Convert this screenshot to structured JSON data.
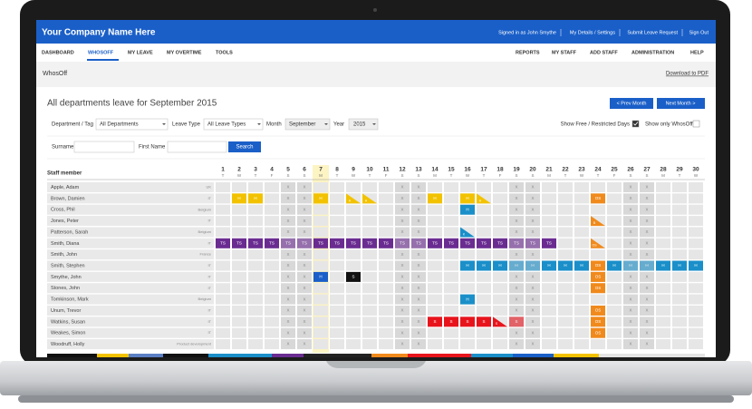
{
  "header": {
    "company": "Your Company Name Here",
    "links": [
      "Signed in as John Smythe",
      "My Details / Settings",
      "Submit Leave Request",
      "Sign Out"
    ]
  },
  "nav": {
    "left": [
      "DASHBOARD",
      "WHOSOFF",
      "MY LEAVE",
      "MY OVERTIME",
      "TOOLS"
    ],
    "right": [
      "REPORTS",
      "MY STAFF",
      "ADD STAFF",
      "ADMINISTRATION",
      "HELP"
    ],
    "active": "WHOSOFF"
  },
  "page": {
    "name": "WhosOff",
    "download": "Download to PDF",
    "title": "All departments leave for September 2015",
    "prev": "< Prev Month",
    "next": "Next Month >"
  },
  "filters": {
    "department_label": "Department / Tag",
    "department": "All Departments",
    "leave_type_label": "Leave Type",
    "leave_type": "All Leave Types",
    "month_label": "Month",
    "month": "September",
    "year_label": "Year",
    "year": "2015",
    "free_days_label": "Show Free / Restricted Days",
    "free_days_checked": true,
    "only_whosoff_label": "Show only WhosOff",
    "only_whosoff_checked": false,
    "surname_label": "Surname",
    "first_name_label": "First Name",
    "search": "Search"
  },
  "grid": {
    "staff_header": "Staff member",
    "weekend_mark": "X",
    "today": 7,
    "days": [
      {
        "day": 1,
        "weekday": "T"
      },
      {
        "day": 2,
        "weekday": "W"
      },
      {
        "day": 3,
        "weekday": "T"
      },
      {
        "day": 4,
        "weekday": "F"
      },
      {
        "day": 5,
        "weekday": "S"
      },
      {
        "day": 6,
        "weekday": "S"
      },
      {
        "day": 7,
        "weekday": "M"
      },
      {
        "day": 8,
        "weekday": "T"
      },
      {
        "day": 9,
        "weekday": "W"
      },
      {
        "day": 10,
        "weekday": "T"
      },
      {
        "day": 11,
        "weekday": "F"
      },
      {
        "day": 12,
        "weekday": "S"
      },
      {
        "day": 13,
        "weekday": "S"
      },
      {
        "day": 14,
        "weekday": "M"
      },
      {
        "day": 15,
        "weekday": "T"
      },
      {
        "day": 16,
        "weekday": "W"
      },
      {
        "day": 17,
        "weekday": "T"
      },
      {
        "day": 18,
        "weekday": "F"
      },
      {
        "day": 19,
        "weekday": "S"
      },
      {
        "day": 20,
        "weekday": "S"
      },
      {
        "day": 21,
        "weekday": "M"
      },
      {
        "day": 22,
        "weekday": "T"
      },
      {
        "day": 23,
        "weekday": "W"
      },
      {
        "day": 24,
        "weekday": "T"
      },
      {
        "day": 25,
        "weekday": "F"
      },
      {
        "day": 26,
        "weekday": "S"
      },
      {
        "day": 27,
        "weekday": "S"
      },
      {
        "day": 28,
        "weekday": "M"
      },
      {
        "day": 29,
        "weekday": "T"
      },
      {
        "day": 30,
        "weekday": "W"
      }
    ],
    "staff": [
      {
        "name": "Apple, Adam",
        "tag": "UK",
        "leave": []
      },
      {
        "name": "Brown, Damien",
        "tag": "IT",
        "leave": [
          {
            "day": 2,
            "code": "H",
            "color": "#f2c200"
          },
          {
            "day": 3,
            "code": "H",
            "color": "#f2c200"
          },
          {
            "day": 7,
            "code": "H",
            "color": "#f2c200"
          },
          {
            "day": 9,
            "code": "H",
            "color": "#f2c200",
            "half": true
          },
          {
            "day": 10,
            "code": "H",
            "color": "#f2c200",
            "half": true
          },
          {
            "day": 14,
            "code": "H",
            "color": "#f2c200"
          },
          {
            "day": 16,
            "code": "H",
            "color": "#f2c200"
          },
          {
            "day": 17,
            "code": "H",
            "color": "#f2c200",
            "half": true
          },
          {
            "day": 24,
            "code": "OS",
            "color": "#f08a1c"
          }
        ]
      },
      {
        "name": "Cross, Phil",
        "tag": "Belgium",
        "leave": [
          {
            "day": 16,
            "code": "H",
            "color": "#1a8fc9"
          }
        ]
      },
      {
        "name": "Jones, Peter",
        "tag": "IT",
        "leave": [
          {
            "day": 24,
            "code": "B",
            "color": "#f08a1c",
            "half": true
          }
        ]
      },
      {
        "name": "Patterson, Sarah",
        "tag": "Belgium",
        "leave": [
          {
            "day": 16,
            "code": "K",
            "color": "#1a8fc9",
            "half": true
          }
        ]
      },
      {
        "name": "Smith, Diana",
        "tag": "IT",
        "leave": [
          {
            "day": 1,
            "code": "TS",
            "color": "#6a2c91"
          },
          {
            "day": 2,
            "code": "TS",
            "color": "#6a2c91"
          },
          {
            "day": 3,
            "code": "TS",
            "color": "#6a2c91"
          },
          {
            "day": 4,
            "code": "TS",
            "color": "#6a2c91"
          },
          {
            "day": 5,
            "code": "TS",
            "color": "#6a2c91"
          },
          {
            "day": 6,
            "code": "TS",
            "color": "#6a2c91"
          },
          {
            "day": 7,
            "code": "TS",
            "color": "#6a2c91"
          },
          {
            "day": 8,
            "code": "TS",
            "color": "#6a2c91"
          },
          {
            "day": 9,
            "code": "TS",
            "color": "#6a2c91"
          },
          {
            "day": 10,
            "code": "TS",
            "color": "#6a2c91"
          },
          {
            "day": 11,
            "code": "TS",
            "color": "#6a2c91"
          },
          {
            "day": 12,
            "code": "TS",
            "color": "#6a2c91"
          },
          {
            "day": 13,
            "code": "TS",
            "color": "#6a2c91"
          },
          {
            "day": 14,
            "code": "TS",
            "color": "#6a2c91"
          },
          {
            "day": 15,
            "code": "TS",
            "color": "#6a2c91"
          },
          {
            "day": 16,
            "code": "TS",
            "color": "#6a2c91"
          },
          {
            "day": 17,
            "code": "TS",
            "color": "#6a2c91"
          },
          {
            "day": 18,
            "code": "TS",
            "color": "#6a2c91"
          },
          {
            "day": 19,
            "code": "TS",
            "color": "#6a2c91"
          },
          {
            "day": 20,
            "code": "TS",
            "color": "#6a2c91"
          },
          {
            "day": 21,
            "code": "TS",
            "color": "#6a2c91"
          },
          {
            "day": 24,
            "code": "OS",
            "color": "#f08a1c",
            "half": true
          }
        ]
      },
      {
        "name": "Smith, John",
        "tag": "France",
        "leave": []
      },
      {
        "name": "Smith, Stephen",
        "tag": "IT",
        "leave": [
          {
            "day": 16,
            "code": "H",
            "color": "#1a8fc9"
          },
          {
            "day": 17,
            "code": "H",
            "color": "#1a8fc9"
          },
          {
            "day": 18,
            "code": "H",
            "color": "#1a8fc9"
          },
          {
            "day": 19,
            "code": "H",
            "color": "#1a8fc9"
          },
          {
            "day": 20,
            "code": "H",
            "color": "#1a8fc9"
          },
          {
            "day": 21,
            "code": "H",
            "color": "#1a8fc9"
          },
          {
            "day": 22,
            "code": "H",
            "color": "#1a8fc9"
          },
          {
            "day": 23,
            "code": "H",
            "color": "#1a8fc9"
          },
          {
            "day": 24,
            "code": "OS",
            "color": "#f08a1c"
          },
          {
            "day": 25,
            "code": "H",
            "color": "#1a8fc9"
          },
          {
            "day": 26,
            "code": "H",
            "color": "#1a8fc9"
          },
          {
            "day": 27,
            "code": "H",
            "color": "#1a8fc9"
          },
          {
            "day": 28,
            "code": "H",
            "color": "#1a8fc9"
          },
          {
            "day": 29,
            "code": "H",
            "color": "#1a8fc9"
          },
          {
            "day": 30,
            "code": "H",
            "color": "#1a8fc9"
          }
        ]
      },
      {
        "name": "Smythe, John",
        "tag": "IT",
        "leave": [
          {
            "day": 7,
            "code": "H",
            "color": "#1a5fc8"
          },
          {
            "day": 9,
            "code": "S",
            "color": "#111111"
          },
          {
            "day": 24,
            "code": "OS",
            "color": "#f08a1c"
          }
        ]
      },
      {
        "name": "Stones, John",
        "tag": "IT",
        "leave": [
          {
            "day": 24,
            "code": "OS",
            "color": "#f08a1c"
          }
        ]
      },
      {
        "name": "Tomkinson, Mark",
        "tag": "Belgium",
        "leave": [
          {
            "day": 16,
            "code": "H",
            "color": "#1a8fc9"
          }
        ]
      },
      {
        "name": "Unum, Trevor",
        "tag": "IT",
        "leave": [
          {
            "day": 24,
            "code": "OS",
            "color": "#f08a1c"
          }
        ]
      },
      {
        "name": "Watkins, Susan",
        "tag": "IT",
        "leave": [
          {
            "day": 14,
            "code": "S",
            "color": "#e8141c"
          },
          {
            "day": 15,
            "code": "S",
            "color": "#e8141c"
          },
          {
            "day": 16,
            "code": "S",
            "color": "#e8141c"
          },
          {
            "day": 17,
            "code": "S",
            "color": "#e8141c"
          },
          {
            "day": 18,
            "code": "S",
            "color": "#e8141c",
            "half": true
          },
          {
            "day": 19,
            "code": "S",
            "color": "#e8141c"
          },
          {
            "day": 24,
            "code": "OS",
            "color": "#f08a1c"
          }
        ]
      },
      {
        "name": "Weakes, Simon",
        "tag": "IT",
        "leave": [
          {
            "day": 24,
            "code": "OS",
            "color": "#f08a1c"
          }
        ]
      },
      {
        "name": "Woodruff, Holly",
        "tag": "Product development",
        "leave": []
      }
    ]
  }
}
